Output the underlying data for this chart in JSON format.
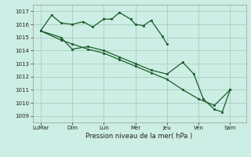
{
  "background_color": "#cceee4",
  "grid_color": "#aaccc0",
  "line_color": "#1a5c2a",
  "marker_color": "#1a5c2a",
  "xlabel": "Pression niveau de la mer( hPa )",
  "ylim": [
    1008.5,
    1017.5
  ],
  "yticks": [
    1009,
    1010,
    1011,
    1012,
    1013,
    1014,
    1015,
    1016,
    1017
  ],
  "xtick_labels": [
    "LuMar",
    "Dim",
    "Lun",
    "Mer",
    "Jeu",
    "Ven",
    "Sam"
  ],
  "xtick_positions": [
    0,
    2,
    4,
    6,
    8,
    10,
    12
  ],
  "series1_x": [
    0,
    0.7,
    1.3,
    2.0,
    2.7,
    3.3,
    4.0,
    4.5,
    5.0,
    5.7,
    6.0,
    6.5,
    7.0,
    7.7,
    8.0
  ],
  "series1_y": [
    1015.5,
    1016.7,
    1016.1,
    1016.0,
    1016.2,
    1015.8,
    1016.4,
    1016.4,
    1016.9,
    1016.4,
    1016.0,
    1015.9,
    1016.3,
    1015.1,
    1014.5
  ],
  "series2_x": [
    0,
    1.3,
    2.0,
    3.0,
    4.0,
    5.0,
    6.0,
    7.0,
    8.0,
    9.0,
    9.7,
    10.3,
    11.0,
    11.5,
    12.0
  ],
  "series2_y": [
    1015.5,
    1015.0,
    1014.1,
    1014.3,
    1014.0,
    1013.5,
    1013.0,
    1012.5,
    1012.2,
    1013.1,
    1012.2,
    1010.3,
    1009.5,
    1009.3,
    1011.0
  ],
  "series3_x": [
    0,
    1.3,
    2.0,
    3.0,
    4.0,
    5.0,
    6.0,
    7.0,
    8.0,
    9.0,
    10.0,
    11.0,
    12.0
  ],
  "series3_y": [
    1015.5,
    1014.8,
    1014.5,
    1014.1,
    1013.8,
    1013.3,
    1012.8,
    1012.3,
    1011.8,
    1011.0,
    1010.3,
    1009.8,
    1011.0
  ]
}
